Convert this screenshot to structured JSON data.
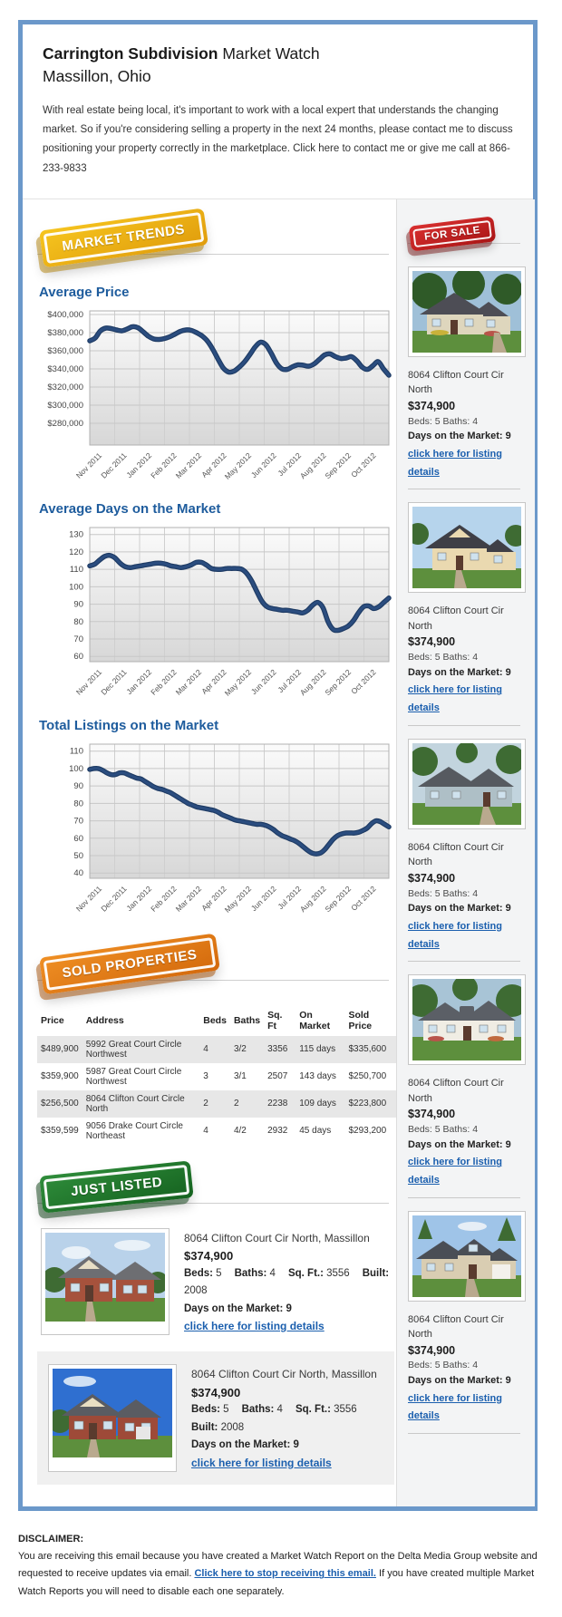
{
  "colors": {
    "frame_blue": "#6b98ca",
    "heading_blue": "#1e5c9d",
    "link_blue": "#1b5fae",
    "chart_line": "#2b4d7f",
    "badge_gold": "#eeb014",
    "badge_red": "#c02020",
    "badge_orange": "#e07c18",
    "badge_green": "#24782e"
  },
  "header": {
    "title_bold": "Carrington Subdivision",
    "title_rest": " Market Watch",
    "subtitle": "Massillon, Ohio",
    "intro": "With real estate being local, it's important to work with a local expert that understands the changing market. So if you're considering selling a property in the next 24 months, please contact me to discuss positioning your property correctly in the marketplace. Click here to contact me or give me call at 866-233-9833"
  },
  "badges": {
    "market_trends": "MARKET TRENDS",
    "for_sale": "FOR SALE",
    "sold_properties": "SOLD PROPERTIES",
    "just_listed": "JUST LISTED"
  },
  "chart_data": [
    {
      "type": "line",
      "title": "Average Price",
      "xlabel": "",
      "ylabel": "",
      "x_labels": [
        "Nov 2011",
        "Dec 2011",
        "Jan 2012",
        "Feb 2012",
        "Mar 2012",
        "Apr 2012",
        "May 2012",
        "Jun 2012",
        "Jul 2012",
        "Aug 2012",
        "Sep 2012",
        "Oct 2012"
      ],
      "ylim": [
        256000,
        404000
      ],
      "yticks": [
        400000,
        380000,
        360000,
        340000,
        320000,
        300000,
        280000
      ],
      "ytick_labels": [
        "$400,000",
        "$380,000",
        "$360,000",
        "$340,000",
        "$320,000",
        "$300,000",
        "$280,000"
      ],
      "grid": true,
      "legend": "none",
      "line_color": "#2b4d7f",
      "values": [
        371000,
        374000,
        382000,
        385000,
        384500,
        383000,
        382000,
        384000,
        386500,
        385500,
        381000,
        376000,
        373000,
        372500,
        373500,
        375500,
        378500,
        381500,
        383000,
        382500,
        380000,
        376500,
        371000,
        362000,
        351000,
        341000,
        336500,
        337500,
        342000,
        348000,
        356000,
        364500,
        369500,
        366500,
        357000,
        346000,
        340000,
        339500,
        342500,
        344500,
        344000,
        343000,
        345500,
        350500,
        355500,
        356500,
        353500,
        351500,
        352000,
        353500,
        349000,
        342000,
        339500,
        343500,
        348000,
        340000,
        333000
      ]
    },
    {
      "type": "line",
      "title": "Average Days on the Market",
      "xlabel": "",
      "ylabel": "",
      "x_labels": [
        "Nov 2011",
        "Dec 2011",
        "Jan 2012",
        "Feb 2012",
        "Mar 2012",
        "Apr 2012",
        "May 2012",
        "Jun 2012",
        "Jul 2012",
        "Aug 2012",
        "Sep 2012",
        "Oct 2012"
      ],
      "ylim": [
        57,
        134
      ],
      "yticks": [
        130,
        120,
        110,
        100,
        90,
        80,
        70,
        60
      ],
      "ytick_labels": [
        "130",
        "120",
        "110",
        "100",
        "90",
        "80",
        "70",
        "60"
      ],
      "grid": true,
      "legend": "none",
      "line_color": "#2b4d7f",
      "values": [
        112,
        113,
        115.5,
        117.5,
        118,
        116.5,
        113.5,
        111.5,
        111,
        111.5,
        112,
        112.5,
        113,
        113.5,
        113.5,
        113,
        112,
        111.5,
        111,
        111.5,
        112.5,
        114,
        114,
        112.5,
        110.5,
        110,
        110,
        110.5,
        110.5,
        110.5,
        110,
        107.5,
        103,
        97,
        91.5,
        88.5,
        87.5,
        87,
        86.5,
        86.5,
        86,
        85.5,
        85,
        86.5,
        89.5,
        91,
        88,
        80,
        75.5,
        75,
        76,
        77.5,
        80.5,
        85,
        88.5,
        89,
        87.5,
        88.5,
        91,
        93.5
      ]
    },
    {
      "type": "line",
      "title": "Total Listings on the Market",
      "xlabel": "",
      "ylabel": "",
      "x_labels": [
        "Nov 2011",
        "Dec 2011",
        "Jan 2012",
        "Feb 2012",
        "Mar 2012",
        "Apr 2012",
        "May 2012",
        "Jun 2012",
        "Jul 2012",
        "Aug 2012",
        "Sep 2012",
        "Oct 2012"
      ],
      "ylim": [
        37,
        114
      ],
      "yticks": [
        110,
        100,
        90,
        80,
        70,
        60,
        50,
        40
      ],
      "ytick_labels": [
        "110",
        "100",
        "90",
        "80",
        "70",
        "60",
        "50",
        "40"
      ],
      "grid": true,
      "legend": "none",
      "line_color": "#2b4d7f",
      "values": [
        99.5,
        100,
        100,
        99,
        97.5,
        96.5,
        96.5,
        97.5,
        97.5,
        96.5,
        95.5,
        94.5,
        94,
        92.5,
        91,
        89.5,
        88.5,
        88,
        87,
        86,
        84.5,
        83,
        81.5,
        80,
        79,
        78,
        77.5,
        77,
        76.5,
        76,
        75,
        73.5,
        72.5,
        71.5,
        70.5,
        70,
        69.5,
        69,
        68.5,
        68,
        68,
        67.5,
        66.5,
        65,
        63,
        61.5,
        60.5,
        59.5,
        58.5,
        57,
        55,
        53,
        51.5,
        51,
        51.5,
        53.5,
        56.5,
        59.5,
        61.5,
        62.5,
        63,
        63,
        63,
        63.5,
        64.5,
        66,
        68.5,
        70,
        69.5,
        68,
        66.5
      ]
    }
  ],
  "sidebar": {
    "listings": [
      {
        "address": "8064 Clifton Court Cir North",
        "price": "$374,900",
        "beds_baths": "Beds: 5 Baths: 4",
        "days": "Days on the Market: 9",
        "link": "click here for listing details"
      },
      {
        "address": "8064 Clifton Court Cir North",
        "price": "$374,900",
        "beds_baths": "Beds: 5 Baths: 4",
        "days": "Days on the Market: 9",
        "link": "click here for listing details"
      },
      {
        "address": "8064 Clifton Court Cir North",
        "price": "$374,900",
        "beds_baths": "Beds: 5 Baths: 4",
        "days": "Days on the Market: 9",
        "link": "click here for listing details"
      },
      {
        "address": "8064 Clifton Court Cir North",
        "price": "$374,900",
        "beds_baths": "Beds: 5 Baths: 4",
        "days": "Days on the Market: 9",
        "link": "click here for listing details"
      },
      {
        "address": "8064 Clifton Court Cir North",
        "price": "$374,900",
        "beds_baths": "Beds: 5 Baths: 4",
        "days": "Days on the Market: 9",
        "link": "click here for listing details"
      }
    ]
  },
  "sold": {
    "headers": [
      "Price",
      "Address",
      "Beds",
      "Baths",
      "Sq. Ft",
      "On Market",
      "Sold Price"
    ],
    "rows": [
      [
        "$489,900",
        "5992 Great Court Circle Northwest",
        "4",
        "3/2",
        "3356",
        "115 days",
        "$335,600"
      ],
      [
        "$359,900",
        "5987 Great Court Circle Northwest",
        "3",
        "3/1",
        "2507",
        "143 days",
        "$250,700"
      ],
      [
        "$256,500",
        "8064 Clifton Court Circle North",
        "2",
        "2",
        "2238",
        "109 days",
        "$223,800"
      ],
      [
        "$359,599",
        "9056 Drake Court Circle Northeast",
        "4",
        "4/2",
        "2932",
        "45 days",
        "$293,200"
      ]
    ]
  },
  "just_listed": {
    "items": [
      {
        "address": "8064 Clifton Court Cir North, Massillon",
        "price": "$374,900",
        "specs": [
          [
            "Beds:",
            "5"
          ],
          [
            "Baths:",
            "4"
          ],
          [
            "Sq. Ft.:",
            "3556"
          ],
          [
            "Built:",
            "2008"
          ]
        ],
        "days": "Days on the Market: 9",
        "link": "click here for listing details"
      },
      {
        "address": "8064 Clifton Court Cir North, Massillon",
        "price": "$374,900",
        "specs": [
          [
            "Beds:",
            "5"
          ],
          [
            "Baths:",
            "4"
          ],
          [
            "Sq. Ft.:",
            "3556"
          ],
          [
            "Built:",
            "2008"
          ]
        ],
        "days": "Days on the Market: 9",
        "link": "click here for listing details"
      }
    ]
  },
  "disclaimer": {
    "label": "DISCLAIMER:",
    "before": "You are receiving this email because you have created a Market Watch Report on the Delta Media Group website and requested to receive updates via email. ",
    "link": "Click here to stop receiving this email.",
    "after": " If you have created multiple Market Watch Reports you will need to disable each one separately."
  }
}
